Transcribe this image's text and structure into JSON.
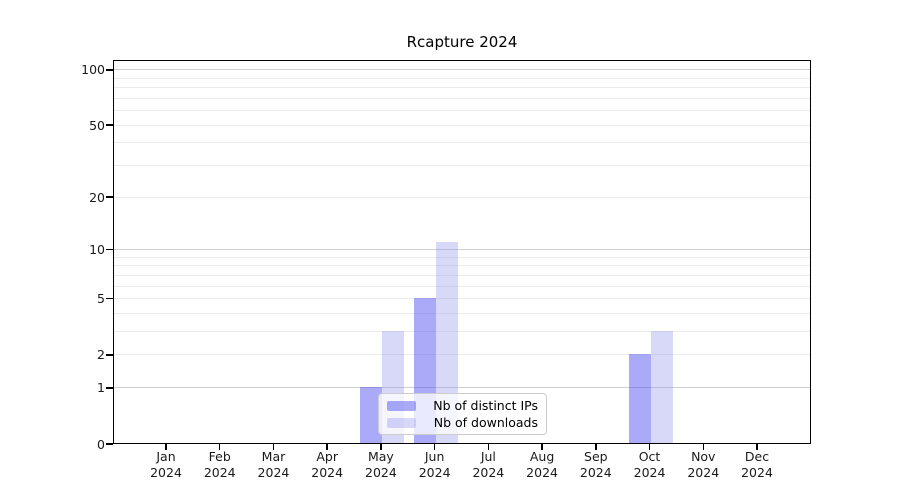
{
  "window": {
    "background": "#ffffff"
  },
  "colors": {
    "ips_bar_hex": "#a8a8f8",
    "downloads_bar_hex": "#d8d8f8",
    "grid_minor": "#ebebeb",
    "grid_major": "#cfcfcf",
    "axis_spine": "#000000",
    "tick_text": "#1a1a1a",
    "legend_border": "#cccccc"
  },
  "chart_data": {
    "type": "bar",
    "title": "Rcapture 2024",
    "xlabel": "",
    "ylabel": "",
    "yscale": "log1p",
    "ylim": [
      0,
      113
    ],
    "grid": "on",
    "legend_position": "inside-bottom-center",
    "categories": [
      "Jan 2024",
      "Feb 2024",
      "Mar 2024",
      "Apr 2024",
      "May 2024",
      "Jun 2024",
      "Jul 2024",
      "Aug 2024",
      "Sep 2024",
      "Oct 2024",
      "Nov 2024",
      "Dec 2024"
    ],
    "y_ticks": [
      0,
      1,
      2,
      5,
      10,
      20,
      50,
      100
    ],
    "grid_minor": [
      2,
      3,
      4,
      5,
      6,
      7,
      8,
      9,
      20,
      30,
      40,
      50,
      60,
      70,
      80,
      90
    ],
    "grid_major": [
      1,
      10,
      100
    ],
    "series": [
      {
        "name": "Nb of distinct IPs",
        "color": "rgba(77,77,242,0.48)",
        "color_hex": "#a8a8f8",
        "values": [
          0,
          0,
          0,
          0,
          1,
          5,
          0,
          0,
          0,
          2,
          0,
          0
        ]
      },
      {
        "name": "Nb of downloads",
        "color": "rgba(140,140,235,0.34)",
        "color_hex": "#d8d8f8",
        "values": [
          0,
          0,
          0,
          0,
          3,
          11,
          0,
          0,
          0,
          3,
          0,
          0
        ]
      }
    ]
  }
}
